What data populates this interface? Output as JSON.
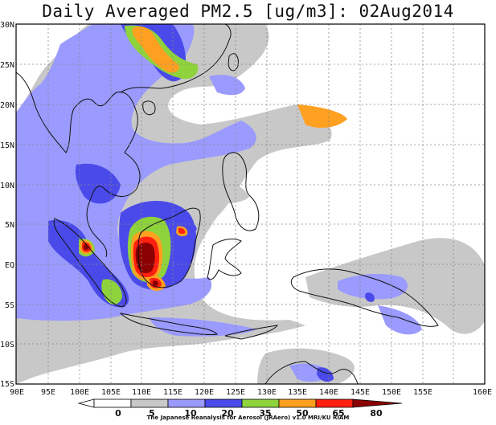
{
  "title": "Daily Averaged PM2.5 [ug/m3]: 02Aug2014",
  "map": {
    "lon_labels": [
      "90E",
      "95E",
      "100E",
      "105E",
      "110E",
      "115E",
      "120E",
      "125E",
      "130E",
      "135E",
      "140E",
      "145E",
      "150E",
      "155E",
      "160E"
    ],
    "lat_labels": [
      "30N",
      "25N",
      "20N",
      "15N",
      "10N",
      "5N",
      "EQ",
      "5S",
      "10S",
      "15S"
    ],
    "gridlines": true
  },
  "colorbar": {
    "levels": [
      "0",
      "5",
      "10",
      "20",
      "35",
      "50",
      "65",
      "80"
    ],
    "colors": [
      "#ffffff",
      "#ffffff",
      "#c8c8c8",
      "#9a9aff",
      "#4a4aea",
      "#8ed23c",
      "#ffa020",
      "#ff2010",
      "#8b0000"
    ]
  },
  "credit": "The Japanese Reanalysis for Aerosol (JRAero) v1.0 MRI/KU RIAM"
}
